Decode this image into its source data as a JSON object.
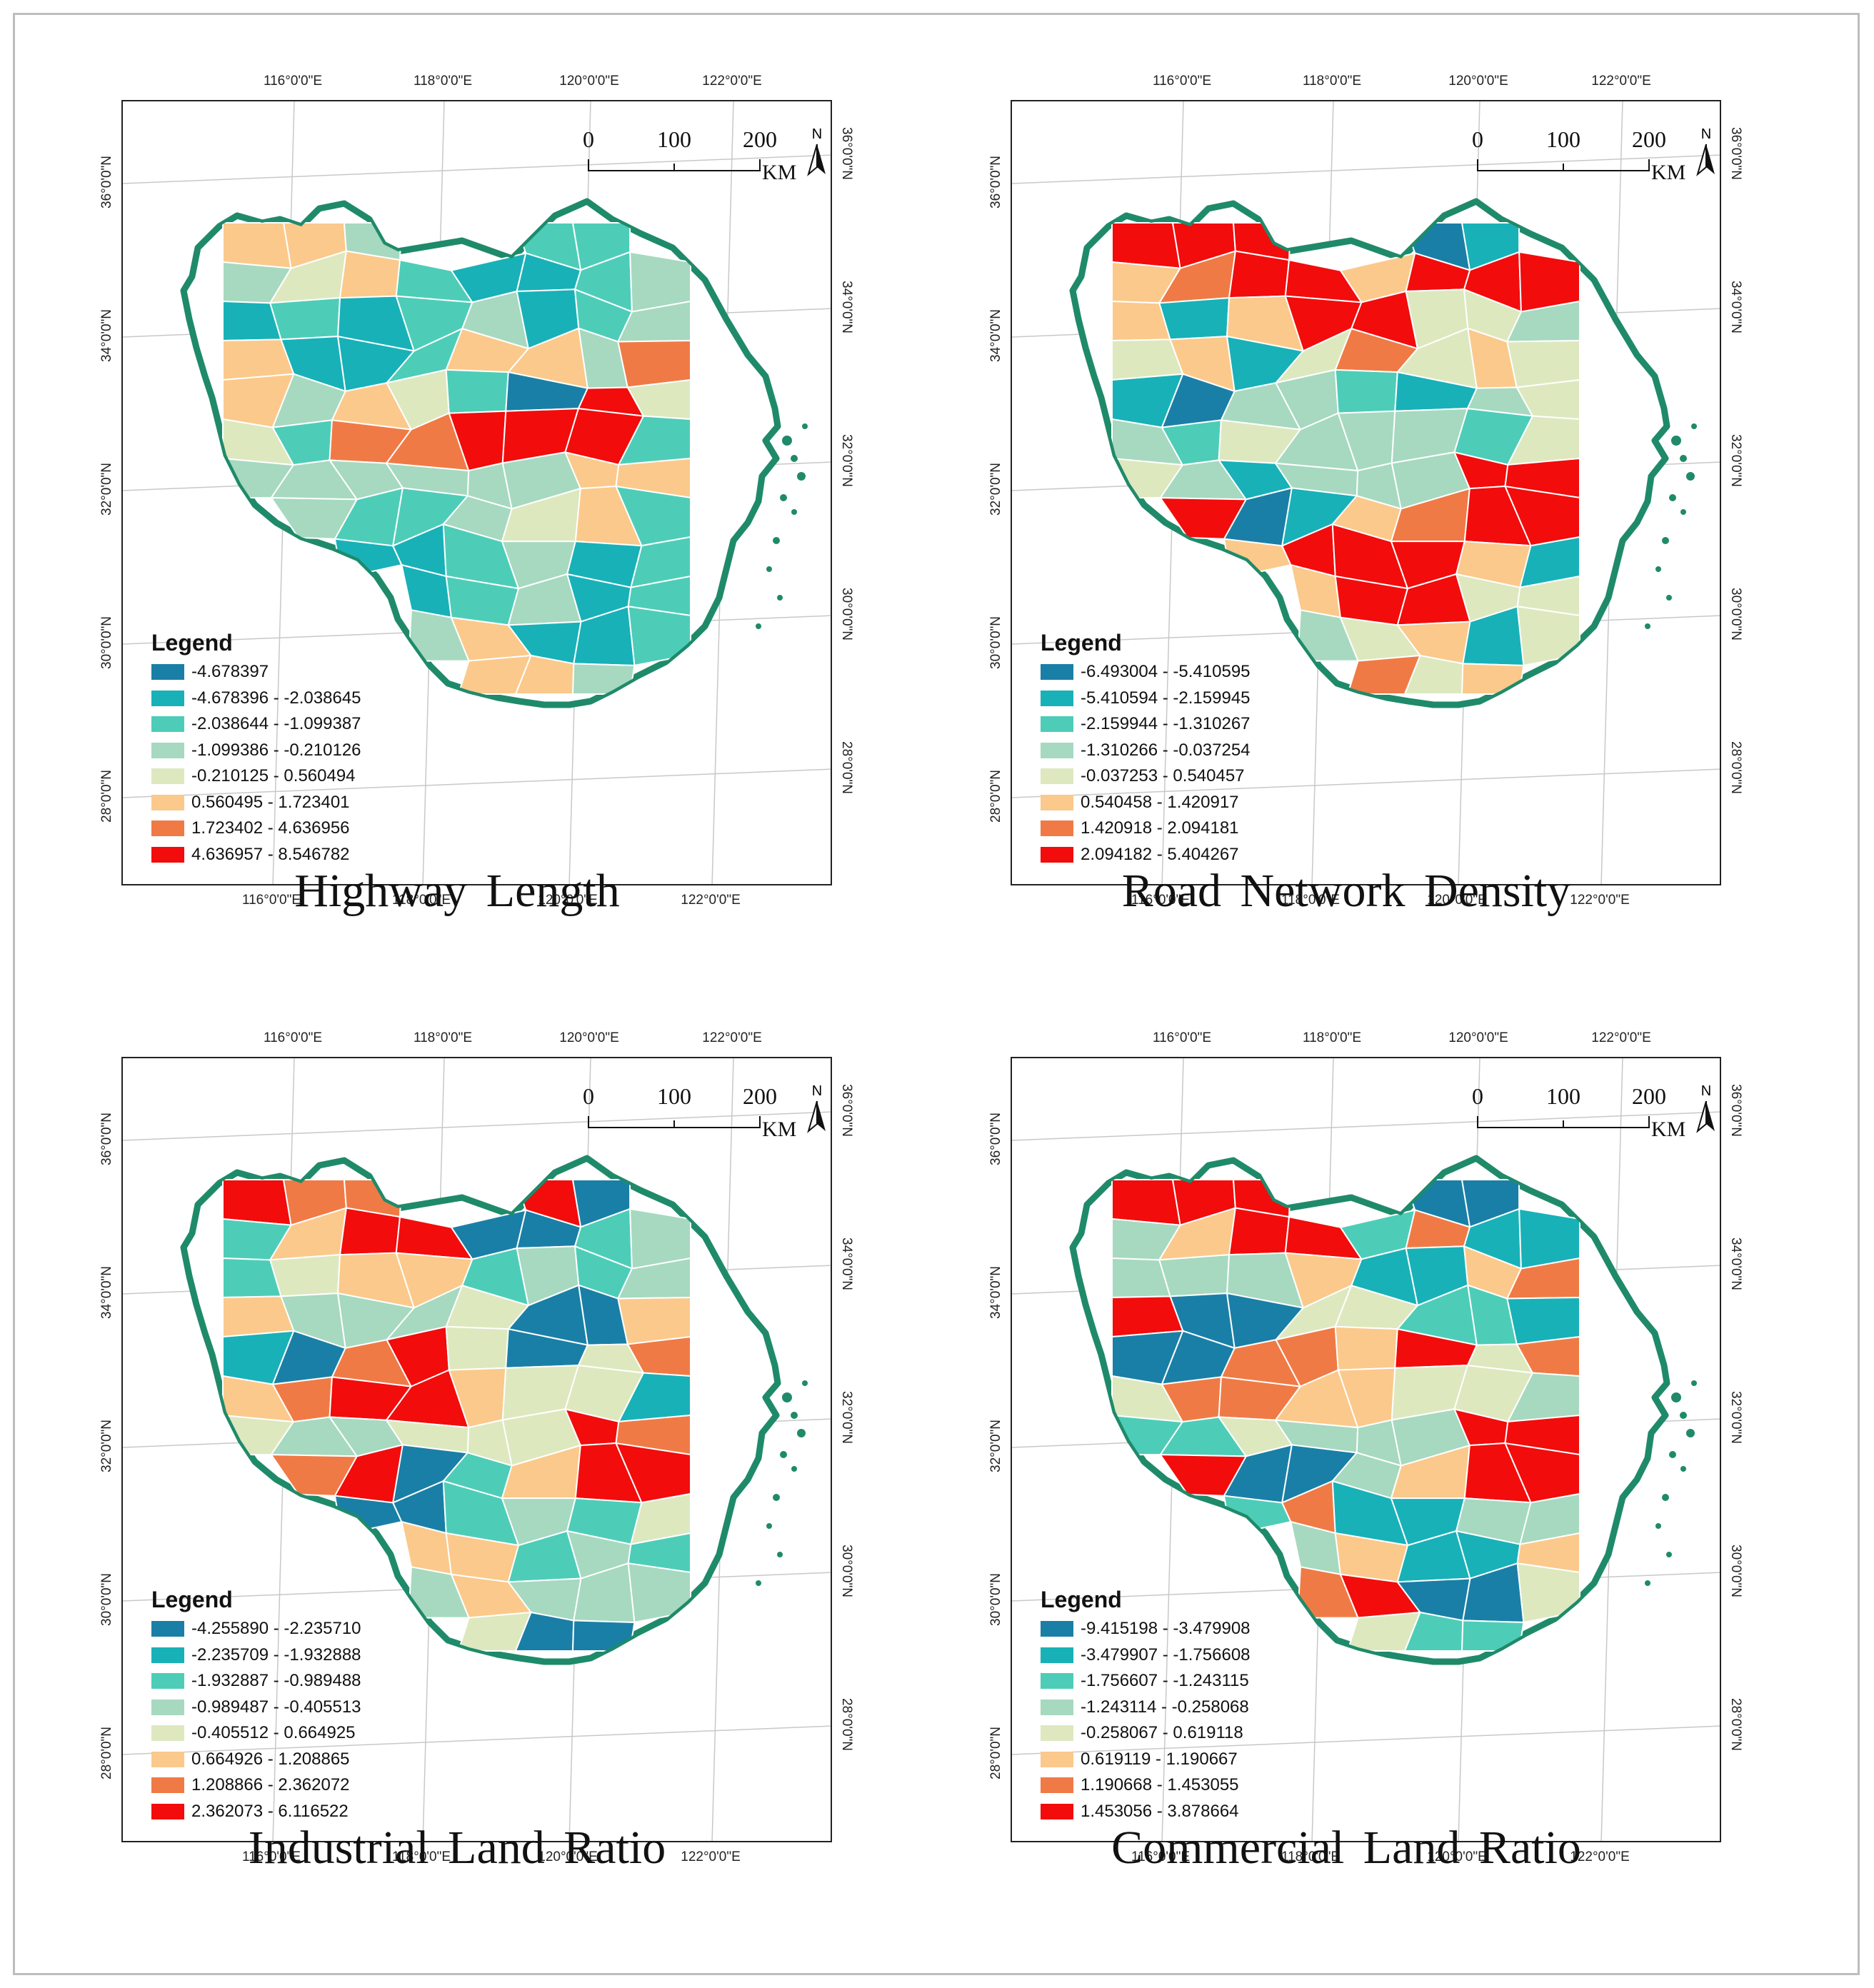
{
  "figure": {
    "panels": [
      {
        "id": "highway",
        "title": "Highway  Length",
        "legend_title": "Legend",
        "classes": [
          "-4.678397",
          "-4.678396 - -2.038645",
          "-2.038644 - -1.099387",
          "-1.099386 - -0.210126",
          "-0.210125 - 0.560494",
          "0.560495 - 1.723401",
          "1.723402 - 4.636956",
          "4.636957 - 8.546782"
        ],
        "regions": [
          5,
          5,
          3,
          2,
          2,
          3,
          4,
          5,
          2,
          1,
          1,
          2,
          3,
          1,
          2,
          1,
          2,
          3,
          1,
          2,
          3,
          5,
          1,
          1,
          2,
          5,
          5,
          3,
          6,
          5,
          3,
          5,
          4,
          2,
          0,
          7,
          4,
          4,
          2,
          6,
          6,
          7,
          7,
          7,
          2,
          3,
          3,
          3,
          3,
          3,
          3
        ]
      },
      {
        "id": "road",
        "title": "Road  Network  Density",
        "legend_title": "Legend",
        "classes": [
          "-6.493004 - -5.410595",
          "-5.410594 - -2.159945",
          "-2.159944 - -1.310267",
          "-1.310266 - -0.037254",
          "-0.037253 - 0.540457",
          "0.540458 - 1.420917",
          "1.420918 - 2.094181",
          "2.094182 - 5.404267"
        ],
        "regions": [
          7,
          7,
          7,
          0,
          1,
          5,
          6,
          7,
          7,
          5,
          7,
          7,
          7,
          5,
          1,
          5,
          7,
          7,
          4,
          4,
          3,
          4,
          5,
          1,
          4,
          6,
          4,
          5,
          4,
          1,
          0,
          3,
          3,
          2,
          1,
          3,
          4,
          3,
          2,
          4,
          3,
          3,
          3,
          2,
          4,
          4,
          3,
          1,
          3,
          3,
          3
        ]
      },
      {
        "id": "industrial",
        "title": "Industrial  Land  Ratio",
        "legend_title": "Legend",
        "classes": [
          "-4.255890 - -2.235710",
          "-2.235709 - -1.932888",
          "-1.932887 - -0.989488",
          "-0.989487 - -0.405513",
          "-0.405512 - 0.664925",
          "0.664926 - 1.208865",
          "1.208866 - 2.362072",
          "2.362073 - 6.116522"
        ],
        "regions": [
          7,
          6,
          6,
          7,
          0,
          2,
          5,
          7,
          7,
          0,
          0,
          2,
          3,
          2,
          4,
          5,
          5,
          2,
          3,
          2,
          3,
          5,
          3,
          3,
          3,
          4,
          0,
          0,
          5,
          1,
          0,
          6,
          7,
          4,
          0,
          4,
          6,
          5,
          6,
          7,
          7,
          5,
          4,
          4,
          1,
          4,
          3,
          3,
          4,
          4,
          4
        ]
      },
      {
        "id": "commercial",
        "title": "Commercial  Land  Ratio",
        "legend_title": "Legend",
        "classes": [
          "-9.415198 - -3.479908",
          "-3.479907 - -1.756608",
          "-1.756607 - -1.243115",
          "-1.243114 - -0.258068",
          "-0.258067 - 0.619118",
          "0.619119 - 1.190667",
          "1.190668 - 1.453055",
          "1.453056 - 3.878664"
        ],
        "regions": [
          7,
          7,
          7,
          0,
          0,
          3,
          5,
          7,
          7,
          2,
          6,
          1,
          1,
          3,
          3,
          3,
          5,
          1,
          1,
          5,
          6,
          7,
          0,
          0,
          4,
          4,
          2,
          2,
          1,
          0,
          0,
          6,
          6,
          5,
          7,
          4,
          6,
          4,
          6,
          6,
          5,
          5,
          4,
          4,
          3,
          2,
          2,
          4,
          3,
          3,
          3
        ]
      }
    ],
    "axes": {
      "top_ticks": [
        "116°0'0\"E",
        "118°0'0\"E",
        "120°0'0\"E",
        "122°0'0\"E"
      ],
      "bottom_ticks": [
        "116°0'0\"E",
        "118°0'0\"E",
        "120°0'0\"E",
        "122°0'0\"E"
      ],
      "left_ticks": [
        "36°0'0\"N",
        "34°0'0\"N",
        "32°0'0\"N",
        "30°0'0\"N",
        "28°0'0\"N"
      ],
      "right_ticks": [
        "36°0'0\"N",
        "34°0'0\"N",
        "32°0'0\"N",
        "30°0'0\"N",
        "28°0'0\"N"
      ]
    },
    "scale_bar": {
      "labels": [
        "0",
        "100",
        "200"
      ],
      "unit": "KM"
    },
    "north_arrow": {
      "label": "N",
      "icon": "north-arrow-icon"
    },
    "colors": {
      "palette": [
        "#1a7fa6",
        "#18b1b8",
        "#4dcdb8",
        "#a6d9c0",
        "#dde8bf",
        "#fbc98b",
        "#f07a45",
        "#f20c0c"
      ],
      "outline": "#1f8a6a",
      "region_border": "#ffffff"
    }
  }
}
